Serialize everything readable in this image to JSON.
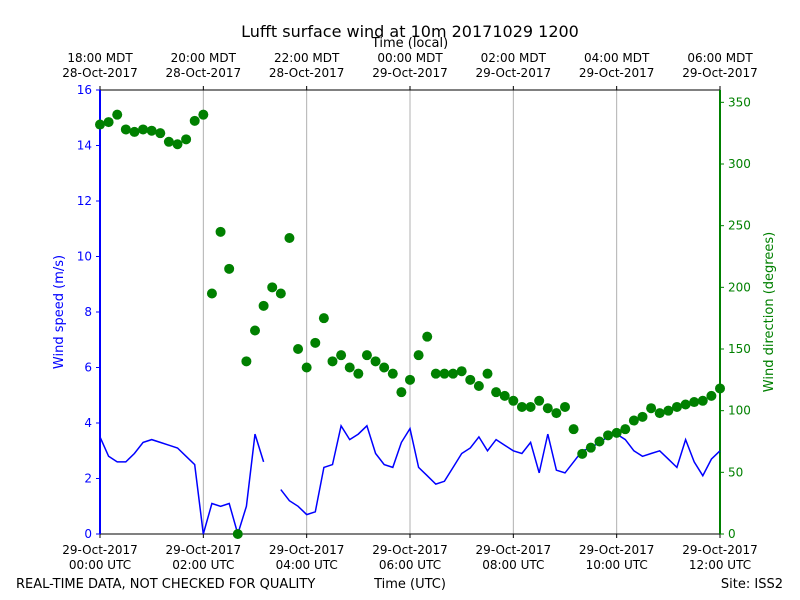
{
  "chart_data": {
    "type": "line-scatter",
    "title": "Lufft surface wind at 10m 20171029 1200",
    "x2label": "Time (local)",
    "xlabel": "Time (UTC)",
    "ylabel": "Wind speed (m/s)",
    "y2label": "Wind direction (degrees)",
    "note": "REAL-TIME DATA, NOT CHECKED FOR QUALITY",
    "site": "Site: ISS2",
    "xlim": [
      "2017-10-29 00:00",
      "2017-10-29 12:00"
    ],
    "xticks": [
      {
        "value": "2017-10-29 00:00",
        "label": "29-Oct-2017\n00:00 UTC"
      },
      {
        "value": "2017-10-29 02:00",
        "label": "29-Oct-2017\n02:00 UTC"
      },
      {
        "value": "2017-10-29 04:00",
        "label": "29-Oct-2017\n04:00 UTC"
      },
      {
        "value": "2017-10-29 06:00",
        "label": "29-Oct-2017\n06:00 UTC"
      },
      {
        "value": "2017-10-29 08:00",
        "label": "29-Oct-2017\n08:00 UTC"
      },
      {
        "value": "2017-10-29 10:00",
        "label": "29-Oct-2017\n10:00 UTC"
      },
      {
        "value": "2017-10-29 12:00",
        "label": "29-Oct-2017\n12:00 UTC"
      }
    ],
    "x2ticks": [
      {
        "value": "2017-10-29 00:00",
        "label": "18:00 MDT\n28-Oct-2017"
      },
      {
        "value": "2017-10-29 02:00",
        "label": "20:00 MDT\n28-Oct-2017"
      },
      {
        "value": "2017-10-29 04:00",
        "label": "22:00 MDT\n28-Oct-2017"
      },
      {
        "value": "2017-10-29 06:00",
        "label": "00:00 MDT\n29-Oct-2017"
      },
      {
        "value": "2017-10-29 08:00",
        "label": "02:00 MDT\n29-Oct-2017"
      },
      {
        "value": "2017-10-29 10:00",
        "label": "04:00 MDT\n29-Oct-2017"
      },
      {
        "value": "2017-10-29 12:00",
        "label": "06:00 MDT\n29-Oct-2017"
      }
    ],
    "ylim": [
      0,
      16
    ],
    "yticks": [
      0,
      2,
      4,
      6,
      8,
      10,
      12,
      14,
      16
    ],
    "y2lim": [
      0,
      360
    ],
    "y2ticks": [
      0,
      50,
      100,
      150,
      200,
      250,
      300,
      350
    ],
    "grid": true,
    "x": [
      "2017-10-29 00:00",
      "2017-10-29 00:10",
      "2017-10-29 00:20",
      "2017-10-29 00:30",
      "2017-10-29 00:40",
      "2017-10-29 00:50",
      "2017-10-29 01:00",
      "2017-10-29 01:10",
      "2017-10-29 01:20",
      "2017-10-29 01:30",
      "2017-10-29 01:40",
      "2017-10-29 01:50",
      "2017-10-29 02:00",
      "2017-10-29 02:10",
      "2017-10-29 02:20",
      "2017-10-29 02:30",
      "2017-10-29 02:40",
      "2017-10-29 02:50",
      "2017-10-29 03:00",
      "2017-10-29 03:10",
      "2017-10-29 03:20",
      "2017-10-29 03:30",
      "2017-10-29 03:40",
      "2017-10-29 03:50",
      "2017-10-29 04:00",
      "2017-10-29 04:10",
      "2017-10-29 04:20",
      "2017-10-29 04:30",
      "2017-10-29 04:40",
      "2017-10-29 04:50",
      "2017-10-29 05:00",
      "2017-10-29 05:10",
      "2017-10-29 05:20",
      "2017-10-29 05:30",
      "2017-10-29 05:40",
      "2017-10-29 05:50",
      "2017-10-29 06:00",
      "2017-10-29 06:10",
      "2017-10-29 06:20",
      "2017-10-29 06:30",
      "2017-10-29 06:40",
      "2017-10-29 06:50",
      "2017-10-29 07:00",
      "2017-10-29 07:10",
      "2017-10-29 07:20",
      "2017-10-29 07:30",
      "2017-10-29 07:40",
      "2017-10-29 07:50",
      "2017-10-29 08:00",
      "2017-10-29 08:10",
      "2017-10-29 08:20",
      "2017-10-29 08:30",
      "2017-10-29 08:40",
      "2017-10-29 08:50",
      "2017-10-29 09:00",
      "2017-10-29 09:10",
      "2017-10-29 09:20",
      "2017-10-29 09:30",
      "2017-10-29 09:40",
      "2017-10-29 09:50",
      "2017-10-29 10:00",
      "2017-10-29 10:10",
      "2017-10-29 10:20",
      "2017-10-29 10:30",
      "2017-10-29 10:40",
      "2017-10-29 10:50",
      "2017-10-29 11:00",
      "2017-10-29 11:10",
      "2017-10-29 11:20",
      "2017-10-29 11:30",
      "2017-10-29 11:40",
      "2017-10-29 11:50",
      "2017-10-29 12:00"
    ],
    "series": [
      {
        "kind": "line",
        "axis": "y",
        "color": "#0000ff",
        "values": [
          3.5,
          2.8,
          2.6,
          2.6,
          2.9,
          3.3,
          3.4,
          3.3,
          3.2,
          3.1,
          2.8,
          2.5,
          0,
          1.1,
          1.0,
          1.1,
          0,
          1.0,
          3.6,
          2.6,
          null,
          1.6,
          1.2,
          1.0,
          0.7,
          0.8,
          2.4,
          2.5,
          3.9,
          3.4,
          3.6,
          3.9,
          2.9,
          2.5,
          2.4,
          3.3,
          3.8,
          2.4,
          2.1,
          1.8,
          1.9,
          2.4,
          2.9,
          3.1,
          3.5,
          3.0,
          3.4,
          3.2,
          3.0,
          2.9,
          3.3,
          2.2,
          3.6,
          2.3,
          2.2,
          2.6,
          3.0,
          3.1,
          3.3,
          3.5,
          3.6,
          3.4,
          3.0,
          2.8,
          2.9,
          3.0,
          2.7,
          2.4,
          3.4,
          2.6,
          2.1,
          2.7,
          3.0
        ]
      },
      {
        "kind": "scatter",
        "axis": "y2",
        "color": "#008000",
        "values": [
          332,
          334,
          340,
          328,
          326,
          328,
          327,
          325,
          318,
          316,
          320,
          335,
          340,
          195,
          245,
          215,
          0,
          140,
          165,
          185,
          200,
          195,
          240,
          150,
          135,
          155,
          175,
          140,
          145,
          135,
          130,
          145,
          140,
          135,
          130,
          115,
          125,
          145,
          160,
          130,
          130,
          130,
          132,
          125,
          120,
          130,
          115,
          112,
          108,
          103,
          103,
          108,
          102,
          98,
          103,
          85,
          65,
          70,
          75,
          80,
          82,
          85,
          92,
          95,
          102,
          98,
          100,
          103,
          105,
          107,
          108,
          112,
          118
        ]
      }
    ]
  }
}
